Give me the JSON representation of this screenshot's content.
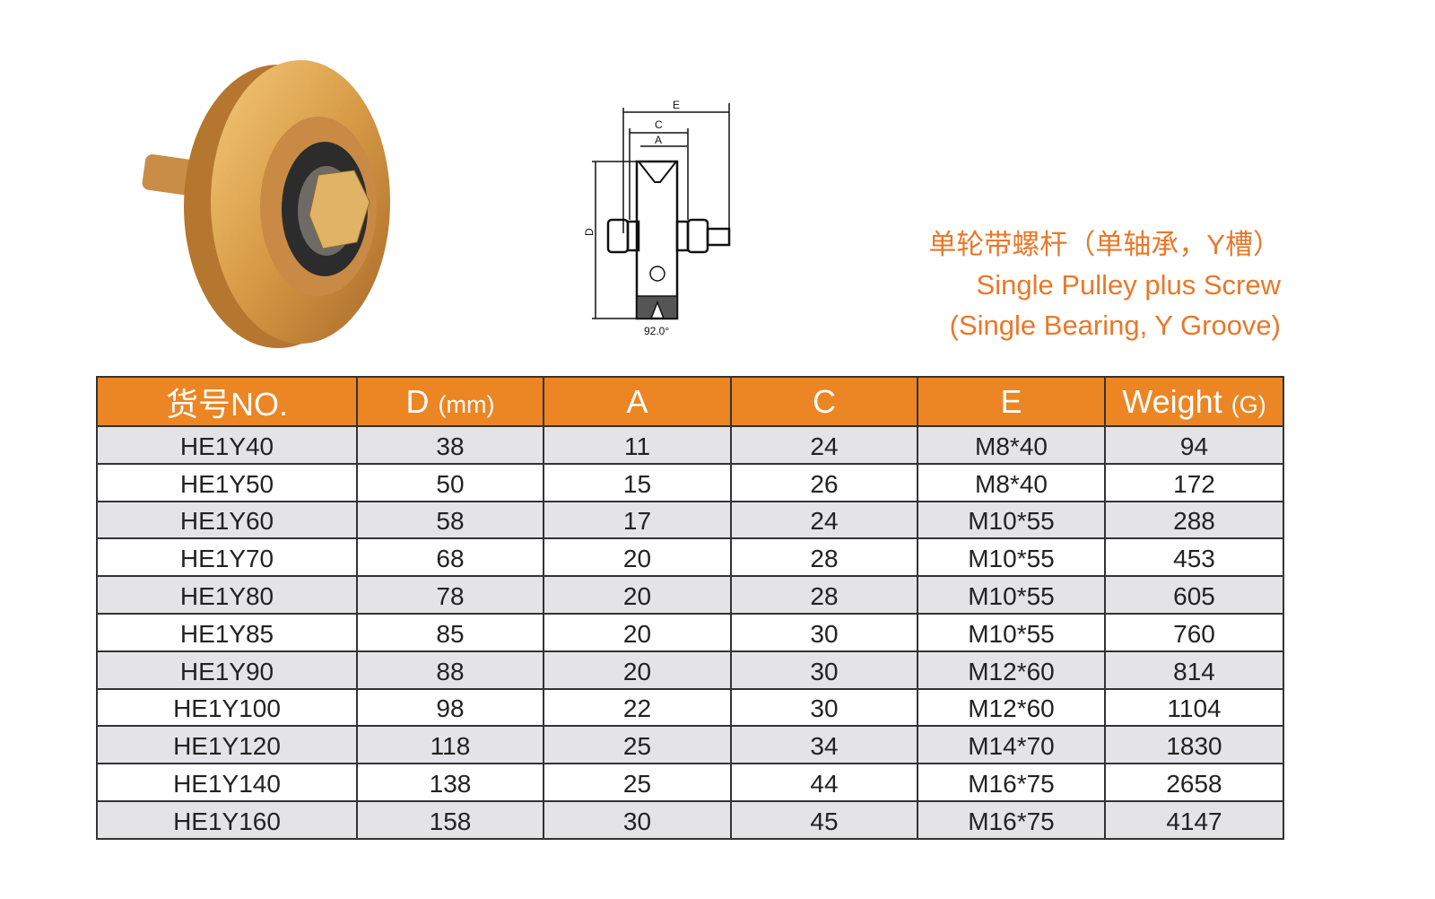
{
  "colors": {
    "accent": "#ec8523",
    "title": "#e8782a",
    "row_alt": "#e4e4e6"
  },
  "title": {
    "zh": "单轮带螺杆（单轴承，Y槽）",
    "en_line1": "Single Pulley plus Screw",
    "en_line2": "(Single Bearing, Y Groove)"
  },
  "drawing": {
    "labels": {
      "e": "E",
      "c": "C",
      "a": "A",
      "d": "D",
      "angle": "92.0°"
    }
  },
  "table": {
    "headers": [
      {
        "main": "货号NO.",
        "unit": ""
      },
      {
        "main": "D",
        "unit": "(mm)"
      },
      {
        "main": "A",
        "unit": ""
      },
      {
        "main": "C",
        "unit": ""
      },
      {
        "main": "E",
        "unit": ""
      },
      {
        "main": "Weight",
        "unit": "(G)"
      }
    ],
    "rows": [
      [
        "HE1Y40",
        "38",
        "11",
        "24",
        "M8*40",
        "94"
      ],
      [
        "HE1Y50",
        "50",
        "15",
        "26",
        "M8*40",
        "172"
      ],
      [
        "HE1Y60",
        "58",
        "17",
        "24",
        "M10*55",
        "288"
      ],
      [
        "HE1Y70",
        "68",
        "20",
        "28",
        "M10*55",
        "453"
      ],
      [
        "HE1Y80",
        "78",
        "20",
        "28",
        "M10*55",
        "605"
      ],
      [
        "HE1Y85",
        "85",
        "20",
        "30",
        "M10*55",
        "760"
      ],
      [
        "HE1Y90",
        "88",
        "20",
        "30",
        "M12*60",
        "814"
      ],
      [
        "HE1Y100",
        "98",
        "22",
        "30",
        "M12*60",
        "1104"
      ],
      [
        "HE1Y120",
        "118",
        "25",
        "34",
        "M14*70",
        "1830"
      ],
      [
        "HE1Y140",
        "138",
        "25",
        "44",
        "M16*75",
        "2658"
      ],
      [
        "HE1Y160",
        "158",
        "30",
        "45",
        "M16*75",
        "4147"
      ]
    ]
  }
}
